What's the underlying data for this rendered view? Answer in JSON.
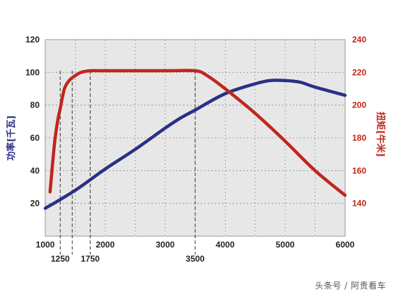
{
  "chart_data": {
    "type": "line",
    "title": "",
    "xlabel": "",
    "ylabel_left": "功率[千瓦]",
    "ylabel_right": "扭矩[牛米]",
    "xlim": [
      1000,
      6000
    ],
    "ylim_left": [
      0,
      120
    ],
    "ylim_right": [
      120,
      240
    ],
    "x_tick_labels": [
      "1000",
      "2000",
      "3000",
      "4000",
      "5000",
      "6000"
    ],
    "x_marker_labels": [
      "1250",
      "1750",
      "3500"
    ],
    "y_left_ticks": [
      20,
      40,
      60,
      80,
      100,
      120
    ],
    "y_right_ticks": [
      140,
      160,
      180,
      200,
      220,
      240
    ],
    "grid": true,
    "series": [
      {
        "axis": "left",
        "color": "#2b2f86",
        "points": [
          [
            1000,
            17
          ],
          [
            1500,
            28
          ],
          [
            2000,
            41
          ],
          [
            2500,
            53
          ],
          [
            3000,
            66
          ],
          [
            3250,
            72
          ],
          [
            3500,
            77
          ],
          [
            4000,
            87
          ],
          [
            4500,
            93
          ],
          [
            4750,
            95
          ],
          [
            5000,
            95
          ],
          [
            5250,
            94
          ],
          [
            5500,
            91
          ],
          [
            6000,
            86
          ]
        ]
      },
      {
        "axis": "right",
        "color": "#c0261c",
        "points": [
          [
            1080,
            147
          ],
          [
            1150,
            175
          ],
          [
            1200,
            189
          ],
          [
            1250,
            198
          ],
          [
            1320,
            210
          ],
          [
            1400,
            215
          ],
          [
            1500,
            218
          ],
          [
            1600,
            220
          ],
          [
            1750,
            221
          ],
          [
            2000,
            221
          ],
          [
            3000,
            221
          ],
          [
            3500,
            221
          ],
          [
            3700,
            218
          ],
          [
            4000,
            210
          ],
          [
            4500,
            195
          ],
          [
            5000,
            178
          ],
          [
            5500,
            160
          ],
          [
            6000,
            145
          ]
        ]
      }
    ],
    "reference_lines_x": [
      1250,
      1450,
      1750,
      3500
    ]
  },
  "watermark": "头条号 / 阿贵看车"
}
